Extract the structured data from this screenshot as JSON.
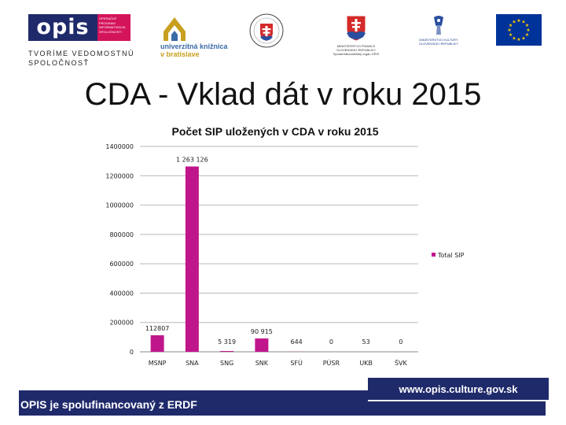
{
  "logos": {
    "opis": {
      "word": "opis",
      "sub_lines": [
        "OPERAČNÝ",
        "PROGRAM",
        "INFORMATIZÁCIA",
        "SPOLOČNOSTI"
      ],
      "tagline_lines": [
        "TVORÍME VEDOMOSTNÚ",
        "SPOLOČNOSŤ"
      ]
    },
    "ukb": {
      "name_line1": "univerzitná knižnica",
      "name_line2": "v bratislave"
    },
    "seal": {
      "icon": "state-seal-icon"
    },
    "sk_government": {
      "text_lines": [
        "MINISTERSTVO FINANCIÍ",
        "SLOVENSKEJ REPUBLIKY",
        "Sprostredkovateľský orgán OPIS"
      ]
    },
    "ministry_culture": {
      "text_lines": [
        "MINISTERSTVO KULTÚRY",
        "SLOVENSKEJ REPUBLIKY"
      ]
    },
    "eu": {
      "icon": "eu-flag-icon"
    }
  },
  "slide": {
    "title": "CDA - Vklad dát v roku 2015"
  },
  "colors": {
    "navy": "#1f2a6b",
    "bar": "#c0168c",
    "magenta": "#d4145a"
  },
  "chart_data": {
    "type": "bar",
    "title": "Počet SIP uložených v CDA v roku 2015",
    "xlabel": "",
    "ylabel": "",
    "categories": [
      "MSNP",
      "SNA",
      "SNG",
      "SNK",
      "SFÚ",
      "PÚSR",
      "UKB",
      "ŠVK"
    ],
    "series": [
      {
        "name": "Total SIP",
        "values": [
          112807,
          1263126,
          5319,
          90915,
          644,
          0,
          53,
          0
        ],
        "labels": [
          "112807",
          "1 263 126",
          "5 319",
          "90 915",
          "644",
          "0",
          "53",
          "0"
        ]
      }
    ],
    "ylim": [
      0,
      1400000
    ],
    "yticks": [
      0,
      200000,
      400000,
      600000,
      800000,
      1000000,
      1200000,
      1400000
    ],
    "ytick_labels": [
      "0",
      "200000",
      "400000",
      "600000",
      "800000",
      "1000000",
      "1200000",
      "1400000"
    ],
    "grid": true,
    "legend": "right"
  },
  "footer": {
    "url": "www.opis.culture.gov.sk",
    "text": "OPIS je spolufinancovaný z ERDF"
  }
}
